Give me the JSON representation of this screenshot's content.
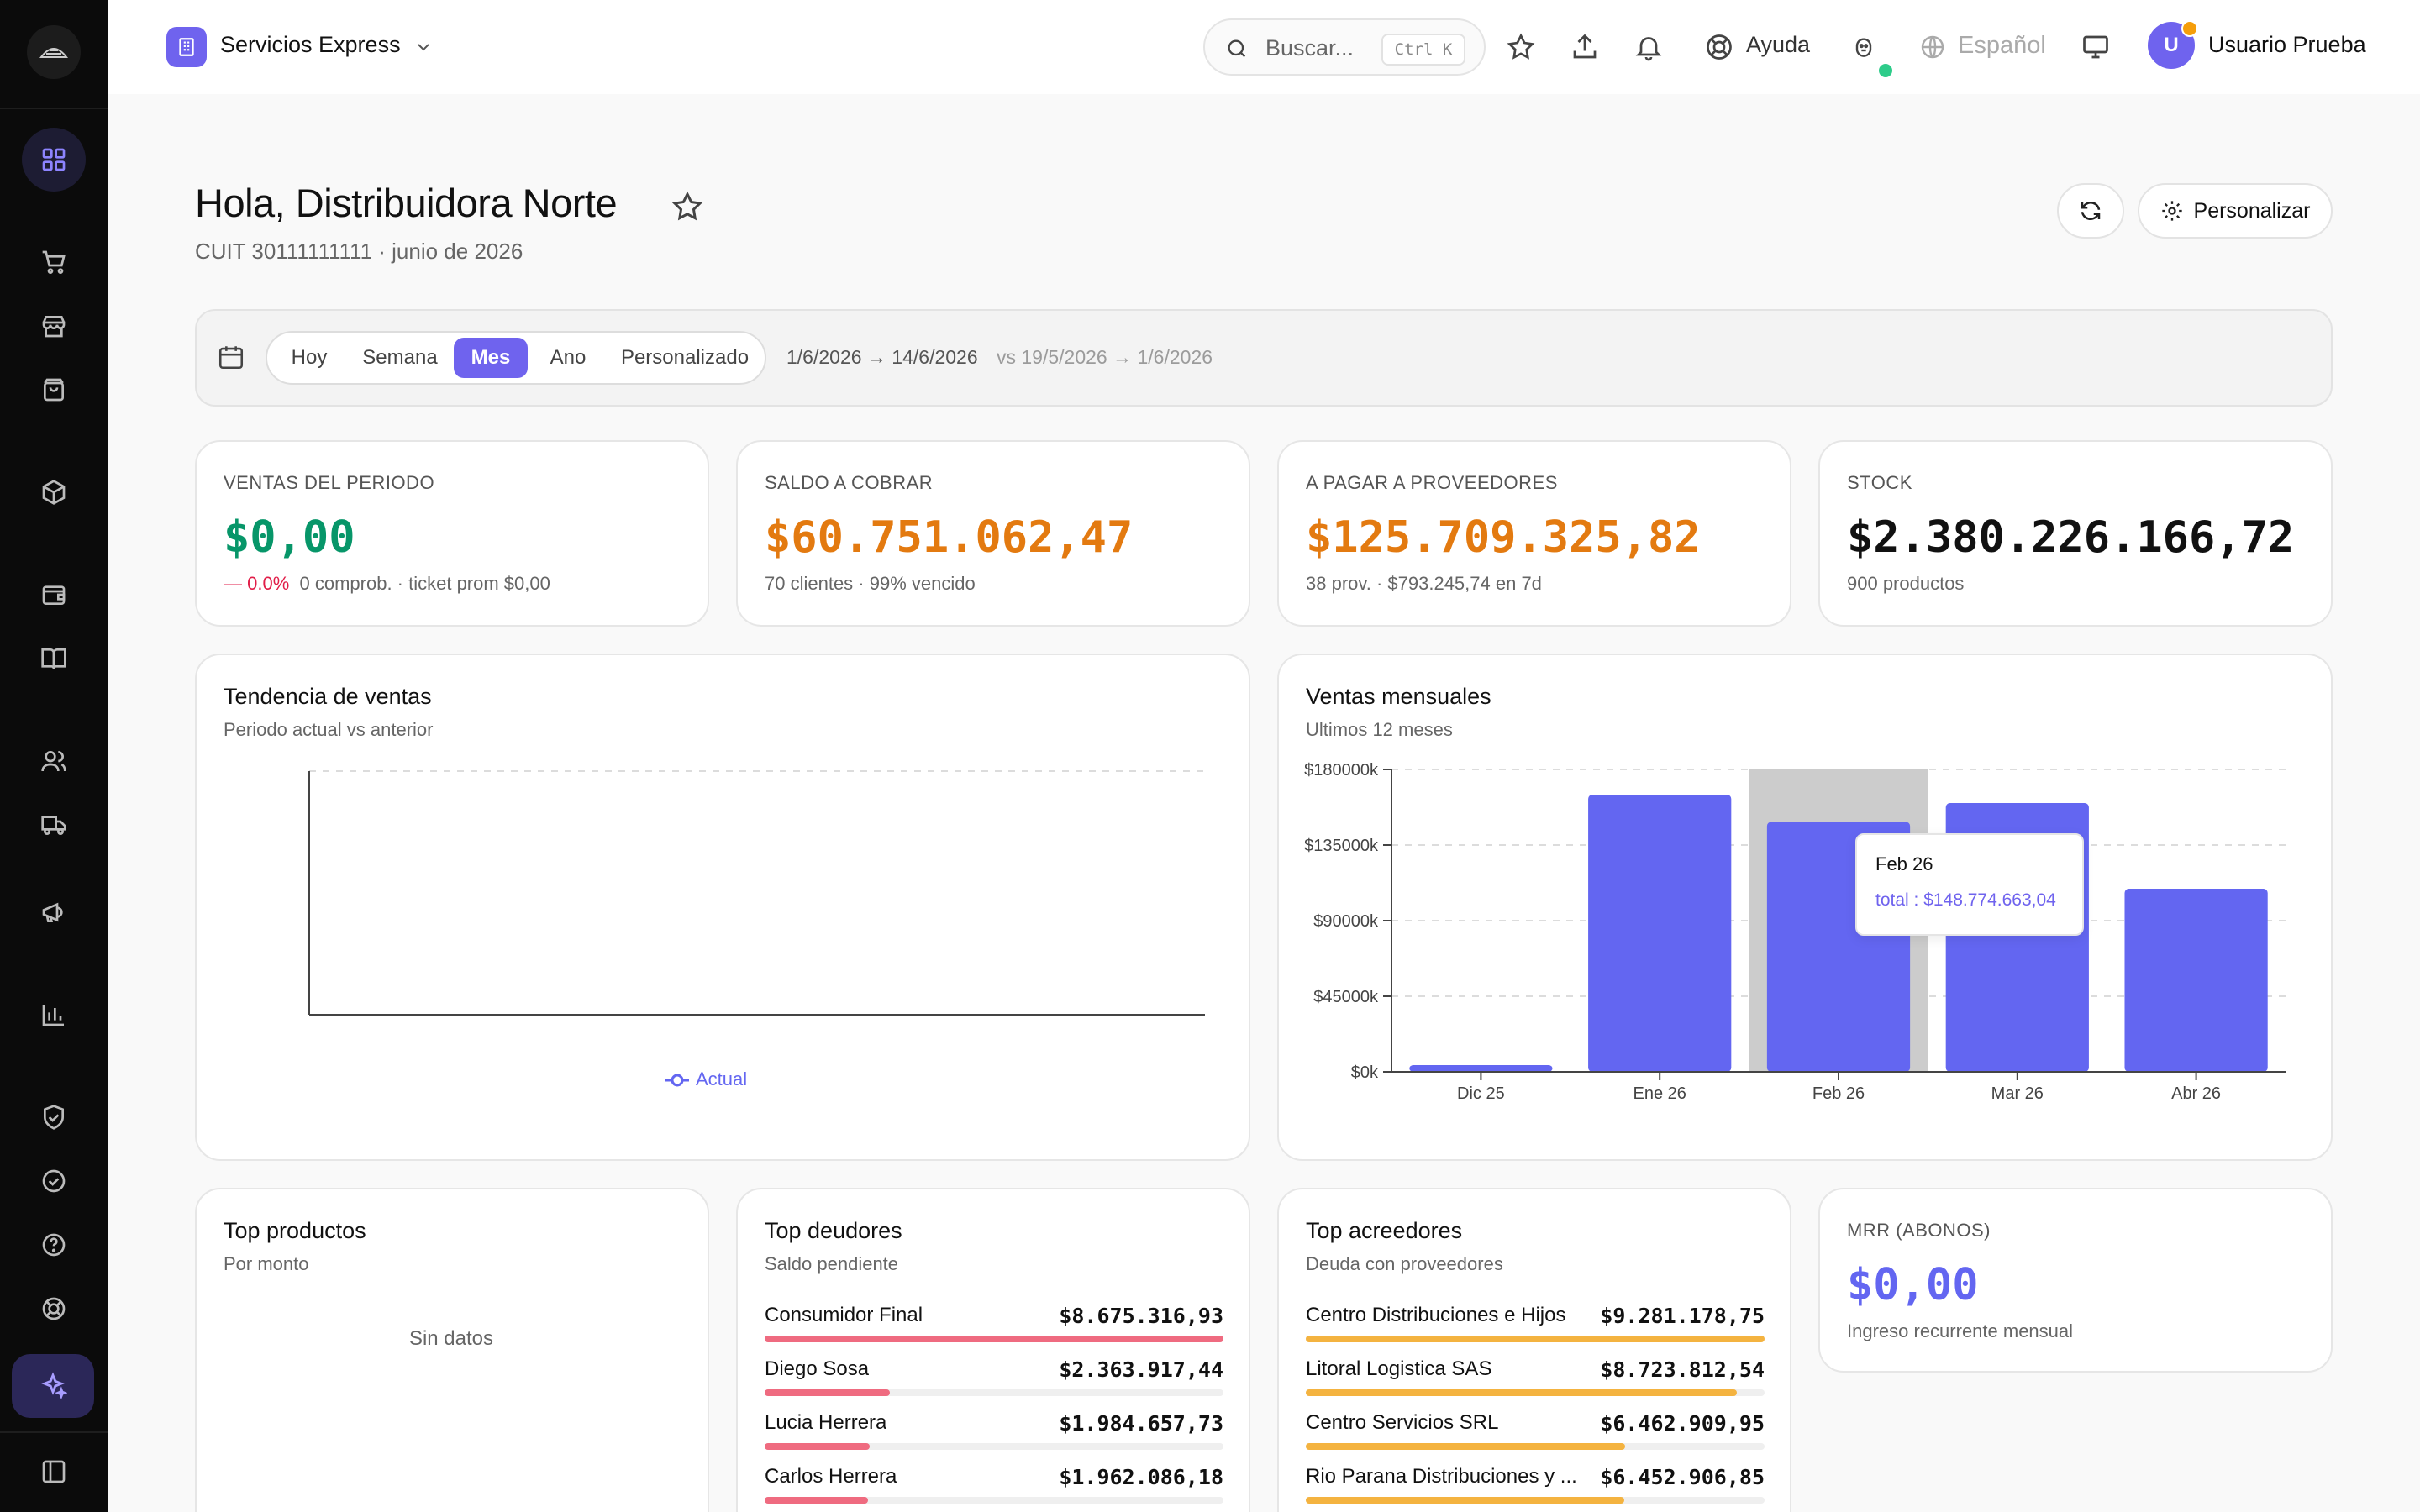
{
  "workspace": {
    "name": "Servicios Express"
  },
  "header": {
    "search_placeholder": "Buscar...",
    "search_shortcut": "Ctrl K",
    "help_label": "Ayuda",
    "language_label": "Español",
    "user_initial": "U",
    "user_name": "Usuario Prueba"
  },
  "sidebar": {
    "items": [
      {
        "icon": "dashboard-icon",
        "active": true
      },
      {
        "icon": "cart-icon"
      },
      {
        "icon": "store-icon"
      },
      {
        "icon": "shopping-bag-icon"
      },
      {
        "icon": "package-icon"
      },
      {
        "icon": "wallet-icon"
      },
      {
        "icon": "book-icon"
      },
      {
        "icon": "users-icon"
      },
      {
        "icon": "truck-icon"
      },
      {
        "icon": "megaphone-icon"
      },
      {
        "icon": "bar-chart-icon"
      },
      {
        "icon": "shield-check-icon"
      },
      {
        "icon": "check-circle-icon"
      },
      {
        "icon": "help-circle-icon"
      },
      {
        "icon": "lifebuoy-icon"
      },
      {
        "icon": "sparkles-icon"
      },
      {
        "icon": "sidebar-toggle-icon"
      }
    ]
  },
  "page": {
    "greeting": "Hola, Distribuidora Norte",
    "subtitle": "CUIT 30111111111 · junio de 2026",
    "customize_label": "Personalizar"
  },
  "filters": {
    "periods": [
      "Hoy",
      "Semana",
      "Mes",
      "Ano",
      "Personalizado"
    ],
    "active_period": "Mes",
    "range": "1/6/2026 → 14/6/2026",
    "compare": "vs 19/5/2026 → 1/6/2026"
  },
  "kpis": [
    {
      "label": "VENTAS DEL PERIODO",
      "value": "$0,00",
      "color": "#079669",
      "delta": "— 0.0%",
      "sub": "0 comprob. · ticket prom $0,00"
    },
    {
      "label": "SALDO A COBRAR",
      "value": "$60.751.062,47",
      "color": "#e37a10",
      "sub": "70 clientes · 99% vencido"
    },
    {
      "label": "A PAGAR A PROVEEDORES",
      "value": "$125.709.325,82",
      "color": "#e37a10",
      "sub": "38 prov. · $793.245,74 en 7d"
    },
    {
      "label": "STOCK",
      "value": "$2.380.226.166,72",
      "color": "#111111",
      "sub": "900 productos"
    }
  ],
  "trend": {
    "title": "Tendencia de ventas",
    "subtitle": "Periodo actual vs anterior",
    "legend": "Actual"
  },
  "monthly": {
    "title": "Ventas mensuales",
    "subtitle": "Ultimos 12 meses",
    "tooltip": {
      "title": "Feb 26",
      "value": "total : $148.774.663,04"
    }
  },
  "chart_data": {
    "type": "bar",
    "title": "Ventas mensuales",
    "categories": [
      "Dic 25",
      "Ene 26",
      "Feb 26",
      "Mar 26",
      "Abr 26"
    ],
    "values": [
      4000000,
      165000000,
      148774663.04,
      160000000,
      109000000
    ],
    "ylim": [
      0,
      180000000
    ],
    "yticks": [
      "$0k",
      "$45000k",
      "$90000k",
      "$135000k",
      "$180000k"
    ],
    "highlighted": "Feb 26",
    "color": "#6366f1",
    "grid": true
  },
  "top_products": {
    "title": "Top productos",
    "subtitle": "Por monto",
    "empty": "Sin datos"
  },
  "top_debtors": {
    "title": "Top deudores",
    "subtitle": "Saldo pendiente",
    "color": "#ef6b80",
    "rows": [
      {
        "name": "Consumidor Final",
        "amount": "$8.675.316,93",
        "share": 1.0
      },
      {
        "name": "Diego Sosa",
        "amount": "$2.363.917,44",
        "share": 0.272
      },
      {
        "name": "Lucia Herrera",
        "amount": "$1.984.657,73",
        "share": 0.229
      },
      {
        "name": "Carlos Herrera",
        "amount": "$1.962.086,18",
        "share": 0.226
      }
    ]
  },
  "top_creditors": {
    "title": "Top acreedores",
    "subtitle": "Deuda con proveedores",
    "color": "#f4b340",
    "rows": [
      {
        "name": "Centro Distribuciones e Hijos",
        "amount": "$9.281.178,75",
        "share": 1.0
      },
      {
        "name": "Litoral Logistica SAS",
        "amount": "$8.723.812,54",
        "share": 0.94
      },
      {
        "name": "Centro Servicios SRL",
        "amount": "$6.462.909,95",
        "share": 0.696
      },
      {
        "name": "Rio Parana Distribuciones y ...",
        "amount": "$6.452.906,85",
        "share": 0.695
      }
    ]
  },
  "mrr": {
    "label": "MRR (ABONOS)",
    "value": "$0,00",
    "color": "#6366f1",
    "sub": "Ingreso recurrente mensual"
  }
}
